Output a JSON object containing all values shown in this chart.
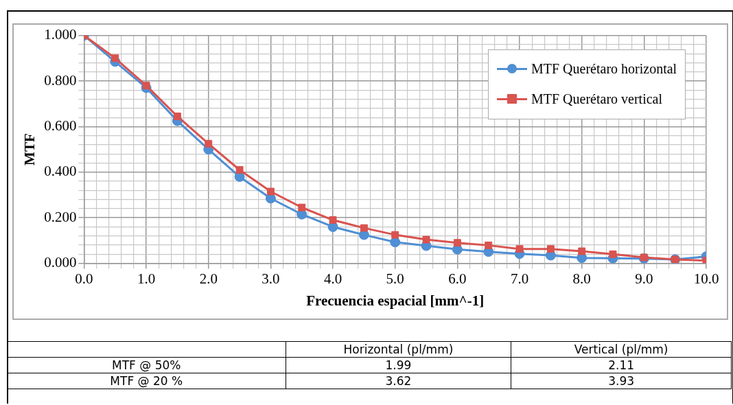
{
  "chart_data": [
    {
      "type": "line",
      "xlabel": "Frecuencia espacial [mm^-1]",
      "ylabel": "MTF",
      "x": [
        0,
        0.5,
        1,
        1.5,
        2,
        2.5,
        3,
        3.5,
        4,
        4.5,
        5,
        5.5,
        6,
        6.5,
        7,
        7.5,
        8,
        8.5,
        9,
        9.5,
        10
      ],
      "series": [
        {
          "name": "MTF Querétaro horizontal",
          "color": "#4f8fd4",
          "marker": "circle",
          "values": [
            1.0,
            0.885,
            0.77,
            0.625,
            0.5,
            0.38,
            0.285,
            0.215,
            0.16,
            0.125,
            0.093,
            0.077,
            0.061,
            0.051,
            0.042,
            0.035,
            0.024,
            0.022,
            0.021,
            0.017,
            0.03
          ]
        },
        {
          "name": "MTF Querétaro vertical",
          "color": "#d9534f",
          "marker": "square",
          "values": [
            1.0,
            0.9,
            0.78,
            0.645,
            0.525,
            0.41,
            0.315,
            0.245,
            0.19,
            0.155,
            0.125,
            0.104,
            0.09,
            0.079,
            0.063,
            0.063,
            0.053,
            0.04,
            0.026,
            0.017,
            0.012
          ]
        }
      ],
      "xlim": [
        0,
        10
      ],
      "xticks": [
        {
          "value": 0,
          "label": "0.0"
        },
        {
          "value": 0.2,
          "label": null
        },
        {
          "value": 0.4,
          "label": null
        },
        {
          "value": 0.6,
          "label": null
        },
        {
          "value": 0.8,
          "label": null
        },
        {
          "value": 1,
          "label": "1.0"
        },
        {
          "value": 1.2,
          "label": null
        },
        {
          "value": 1.4,
          "label": null
        },
        {
          "value": 1.6,
          "label": null
        },
        {
          "value": 1.8,
          "label": null
        },
        {
          "value": 2,
          "label": "2.0"
        },
        {
          "value": 2.2,
          "label": null
        },
        {
          "value": 2.4,
          "label": null
        },
        {
          "value": 2.6,
          "label": null
        },
        {
          "value": 2.8,
          "label": null
        },
        {
          "value": 3,
          "label": "3.0"
        },
        {
          "value": 3.2,
          "label": null
        },
        {
          "value": 3.4,
          "label": null
        },
        {
          "value": 3.6,
          "label": null
        },
        {
          "value": 3.8,
          "label": null
        },
        {
          "value": 4,
          "label": "4.0"
        },
        {
          "value": 4.2,
          "label": null
        },
        {
          "value": 4.4,
          "label": null
        },
        {
          "value": 4.6,
          "label": null
        },
        {
          "value": 4.8,
          "label": null
        },
        {
          "value": 5,
          "label": "5.0"
        },
        {
          "value": 5.2,
          "label": null
        },
        {
          "value": 5.4,
          "label": null
        },
        {
          "value": 5.6,
          "label": null
        },
        {
          "value": 5.8,
          "label": null
        },
        {
          "value": 6,
          "label": "6.0"
        },
        {
          "value": 6.2,
          "label": null
        },
        {
          "value": 6.4,
          "label": null
        },
        {
          "value": 6.6,
          "label": null
        },
        {
          "value": 6.8,
          "label": null
        },
        {
          "value": 7,
          "label": "7.0"
        },
        {
          "value": 7.2,
          "label": null
        },
        {
          "value": 7.4,
          "label": null
        },
        {
          "value": 7.6,
          "label": null
        },
        {
          "value": 7.8,
          "label": null
        },
        {
          "value": 8,
          "label": "8.0"
        },
        {
          "value": 8.2,
          "label": null
        },
        {
          "value": 8.4,
          "label": null
        },
        {
          "value": 8.6,
          "label": null
        },
        {
          "value": 8.8,
          "label": null
        },
        {
          "value": 9,
          "label": "9.0"
        },
        {
          "value": 9.2,
          "label": null
        },
        {
          "value": 9.4,
          "label": null
        },
        {
          "value": 9.6,
          "label": null
        },
        {
          "value": 9.8,
          "label": null
        },
        {
          "value": 10,
          "label": "10.0"
        }
      ],
      "ylim": [
        0,
        1
      ],
      "yticks": [
        {
          "value": 0,
          "label": "0.000"
        },
        {
          "value": 0.04,
          "label": null
        },
        {
          "value": 0.08,
          "label": null
        },
        {
          "value": 0.12,
          "label": null
        },
        {
          "value": 0.16,
          "label": null
        },
        {
          "value": 0.2,
          "label": "0.200"
        },
        {
          "value": 0.24,
          "label": null
        },
        {
          "value": 0.28,
          "label": null
        },
        {
          "value": 0.32,
          "label": null
        },
        {
          "value": 0.36,
          "label": null
        },
        {
          "value": 0.4,
          "label": "0.400"
        },
        {
          "value": 0.44,
          "label": null
        },
        {
          "value": 0.48,
          "label": null
        },
        {
          "value": 0.52,
          "label": null
        },
        {
          "value": 0.56,
          "label": null
        },
        {
          "value": 0.6,
          "label": "0.600"
        },
        {
          "value": 0.64,
          "label": null
        },
        {
          "value": 0.68,
          "label": null
        },
        {
          "value": 0.72,
          "label": null
        },
        {
          "value": 0.76,
          "label": null
        },
        {
          "value": 0.8,
          "label": "0.800"
        },
        {
          "value": 0.84,
          "label": null
        },
        {
          "value": 0.88,
          "label": null
        },
        {
          "value": 0.92,
          "label": null
        },
        {
          "value": 0.96,
          "label": null
        },
        {
          "value": 1,
          "label": "1.000"
        }
      ],
      "grid": true,
      "legend": "top right",
      "line_style": "solid"
    },
    {
      "type": "other",
      "categories": [
        "MTF @ 50%",
        "MTF @ 20 %"
      ],
      "series": [
        {
          "name": "Horizontal (pl/mm)",
          "values": [
            1.99,
            3.62
          ]
        },
        {
          "name": "Vertical (pl/mm)",
          "values": [
            2.11,
            3.93
          ]
        }
      ],
      "data_labels": true
    }
  ]
}
